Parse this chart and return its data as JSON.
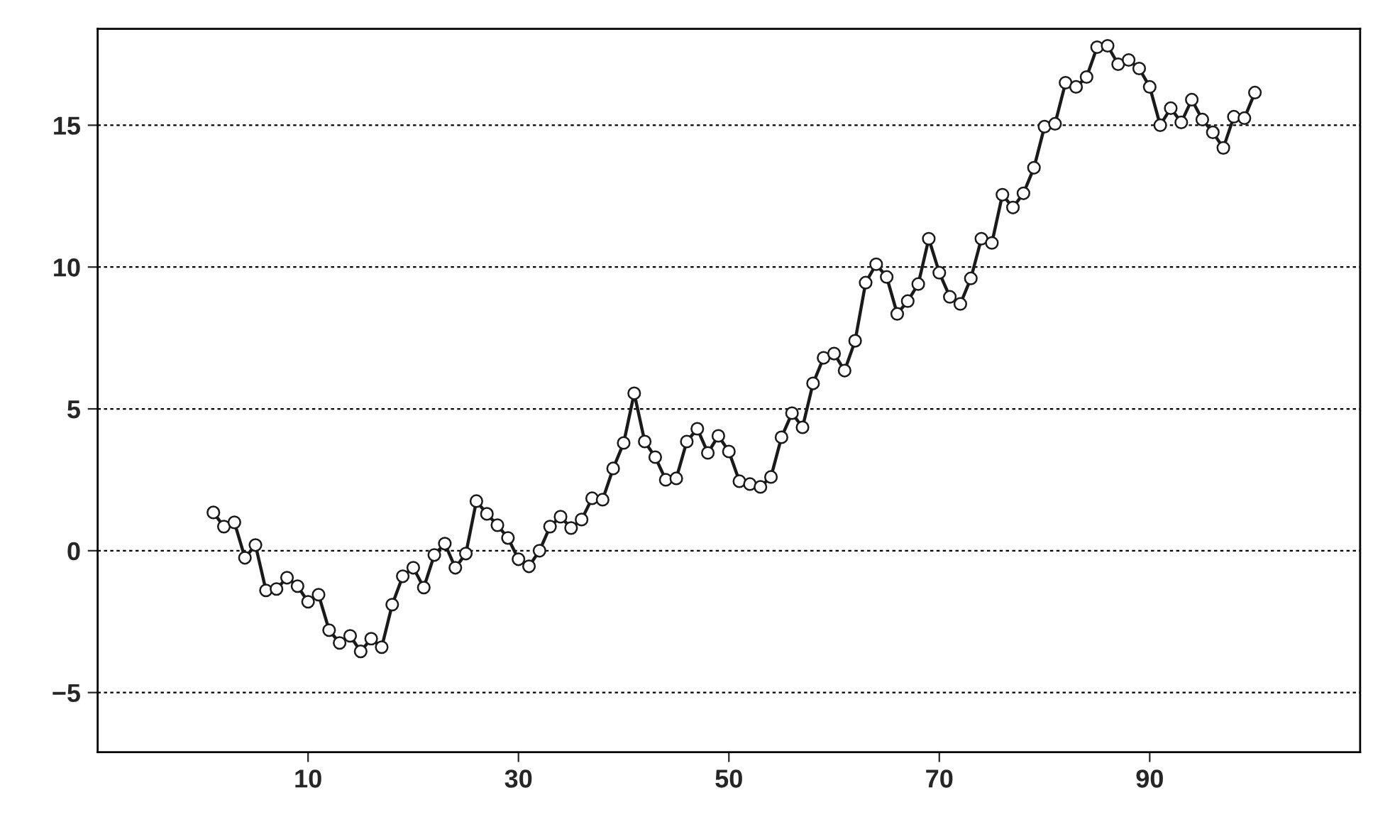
{
  "chart_data": {
    "type": "line",
    "x": [
      1,
      2,
      3,
      4,
      5,
      6,
      7,
      8,
      9,
      10,
      11,
      12,
      13,
      14,
      15,
      16,
      17,
      18,
      19,
      20,
      21,
      22,
      23,
      24,
      25,
      26,
      27,
      28,
      29,
      30,
      31,
      32,
      33,
      34,
      35,
      36,
      37,
      38,
      39,
      40,
      41,
      42,
      43,
      44,
      45,
      46,
      47,
      48,
      49,
      50,
      51,
      52,
      53,
      54,
      55,
      56,
      57,
      58,
      59,
      60,
      61,
      62,
      63,
      64,
      65,
      66,
      67,
      68,
      69,
      70,
      71,
      72,
      73,
      74,
      75,
      76,
      77,
      78,
      79,
      80,
      81,
      82,
      83,
      84,
      85,
      86,
      87,
      88,
      89,
      90,
      91,
      92,
      93,
      94,
      95,
      96,
      97,
      98,
      99,
      100
    ],
    "series": [
      {
        "color": "#1a1a1a",
        "values": [
          1.35,
          0.85,
          1.0,
          -0.25,
          0.2,
          -1.4,
          -1.35,
          -0.95,
          -1.25,
          -1.8,
          -1.55,
          -2.8,
          -3.25,
          -3.0,
          -3.55,
          -3.1,
          -3.4,
          -1.9,
          -0.9,
          -0.6,
          -1.3,
          -0.15,
          0.25,
          -0.6,
          -0.1,
          1.75,
          1.3,
          0.9,
          0.45,
          -0.3,
          -0.55,
          0.0,
          0.85,
          1.2,
          0.8,
          1.1,
          1.85,
          1.8,
          2.9,
          3.8,
          5.55,
          3.85,
          3.3,
          2.5,
          2.55,
          3.85,
          4.3,
          3.45,
          4.05,
          3.5,
          2.45,
          2.35,
          2.25,
          2.6,
          4.0,
          4.85,
          4.35,
          5.9,
          6.8,
          6.95,
          6.35,
          7.4,
          9.45,
          10.1,
          9.65,
          8.35,
          8.8,
          9.4,
          11.0,
          9.8,
          8.95,
          8.7,
          9.6,
          11.0,
          10.85,
          12.55,
          12.1,
          12.6,
          13.5,
          14.95,
          15.05,
          16.5,
          16.35,
          16.7,
          17.75,
          17.8,
          17.15,
          17.3,
          17.0,
          16.35,
          15.0,
          15.6,
          15.1,
          15.9,
          15.2,
          14.75,
          14.2,
          15.3,
          15.25,
          16.15
        ]
      }
    ],
    "xlim": [
      -10,
      110
    ],
    "ylim": [
      -7.1,
      18.4
    ],
    "xticks": [
      10,
      30,
      50,
      70,
      90
    ],
    "yticks": [
      -5,
      0,
      5,
      10,
      15
    ],
    "grid": "y",
    "marker": "circle",
    "line_style": "solid",
    "legend": false
  }
}
